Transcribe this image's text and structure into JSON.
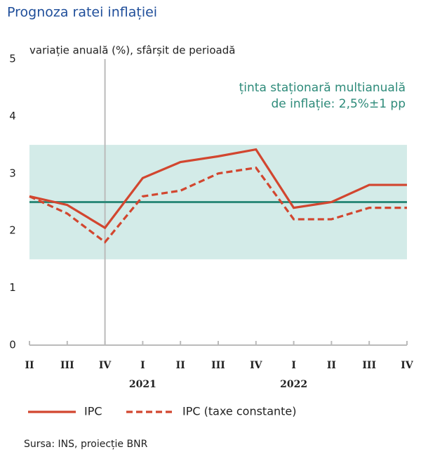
{
  "chart_data": {
    "type": "line",
    "title": "Prognoza ratei inflației",
    "y_label": "variație anuală (%), sfârșit de perioadă",
    "annotation": [
      "ținta staționară multianuală",
      "de inflație: 2,5%±1 pp"
    ],
    "source": "Sursa: INS, proiecție BNR",
    "categories": [
      "II",
      "III",
      "IV",
      "I",
      "II",
      "III",
      "IV",
      "I",
      "II",
      "III",
      "IV"
    ],
    "year_labels": [
      "2021",
      "2022"
    ],
    "series": [
      {
        "name": "IPC",
        "color": "#d2462f",
        "dash": false,
        "values": [
          2.6,
          2.45,
          2.05,
          2.92,
          3.2,
          3.3,
          3.42,
          2.4,
          2.5,
          2.8,
          2.8
        ]
      },
      {
        "name": "IPC (taxe constante)",
        "color": "#d2462f",
        "dash": true,
        "values": [
          2.6,
          2.3,
          1.8,
          2.6,
          2.7,
          3.0,
          3.1,
          2.2,
          2.2,
          2.4,
          2.4
        ]
      }
    ],
    "target": 2.5,
    "target_band": [
      1.5,
      3.5
    ],
    "target_color": "#2e8b7a",
    "band_color": "#d3ebe8",
    "ylim": [
      0,
      5
    ],
    "yticks": [
      0,
      1,
      2,
      3,
      4,
      5
    ]
  }
}
